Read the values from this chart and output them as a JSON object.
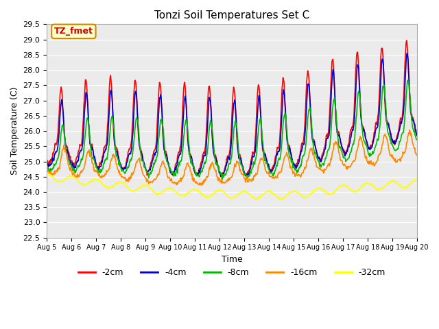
{
  "title": "Tonzi Soil Temperatures Set C",
  "xlabel": "Time",
  "ylabel": "Soil Temperature (C)",
  "ylim": [
    22.5,
    29.5
  ],
  "yticks": [
    22.5,
    23.0,
    23.5,
    24.0,
    24.5,
    25.0,
    25.5,
    26.0,
    26.5,
    27.0,
    27.5,
    28.0,
    28.5,
    29.0,
    29.5
  ],
  "background_color": "#ebebeb",
  "annotation_text": "TZ_fmet",
  "annotation_bg": "#ffffcc",
  "annotation_border": "#cc8800",
  "annotation_color": "#cc0000",
  "legend_labels": [
    "-2cm",
    "-4cm",
    "-8cm",
    "-16cm",
    "-32cm"
  ],
  "legend_colors": [
    "#ff0000",
    "#0000cc",
    "#00bb00",
    "#ff8800",
    "#ffff00"
  ],
  "n_days": 15,
  "x_tick_start": 5,
  "x_tick_end": 20
}
